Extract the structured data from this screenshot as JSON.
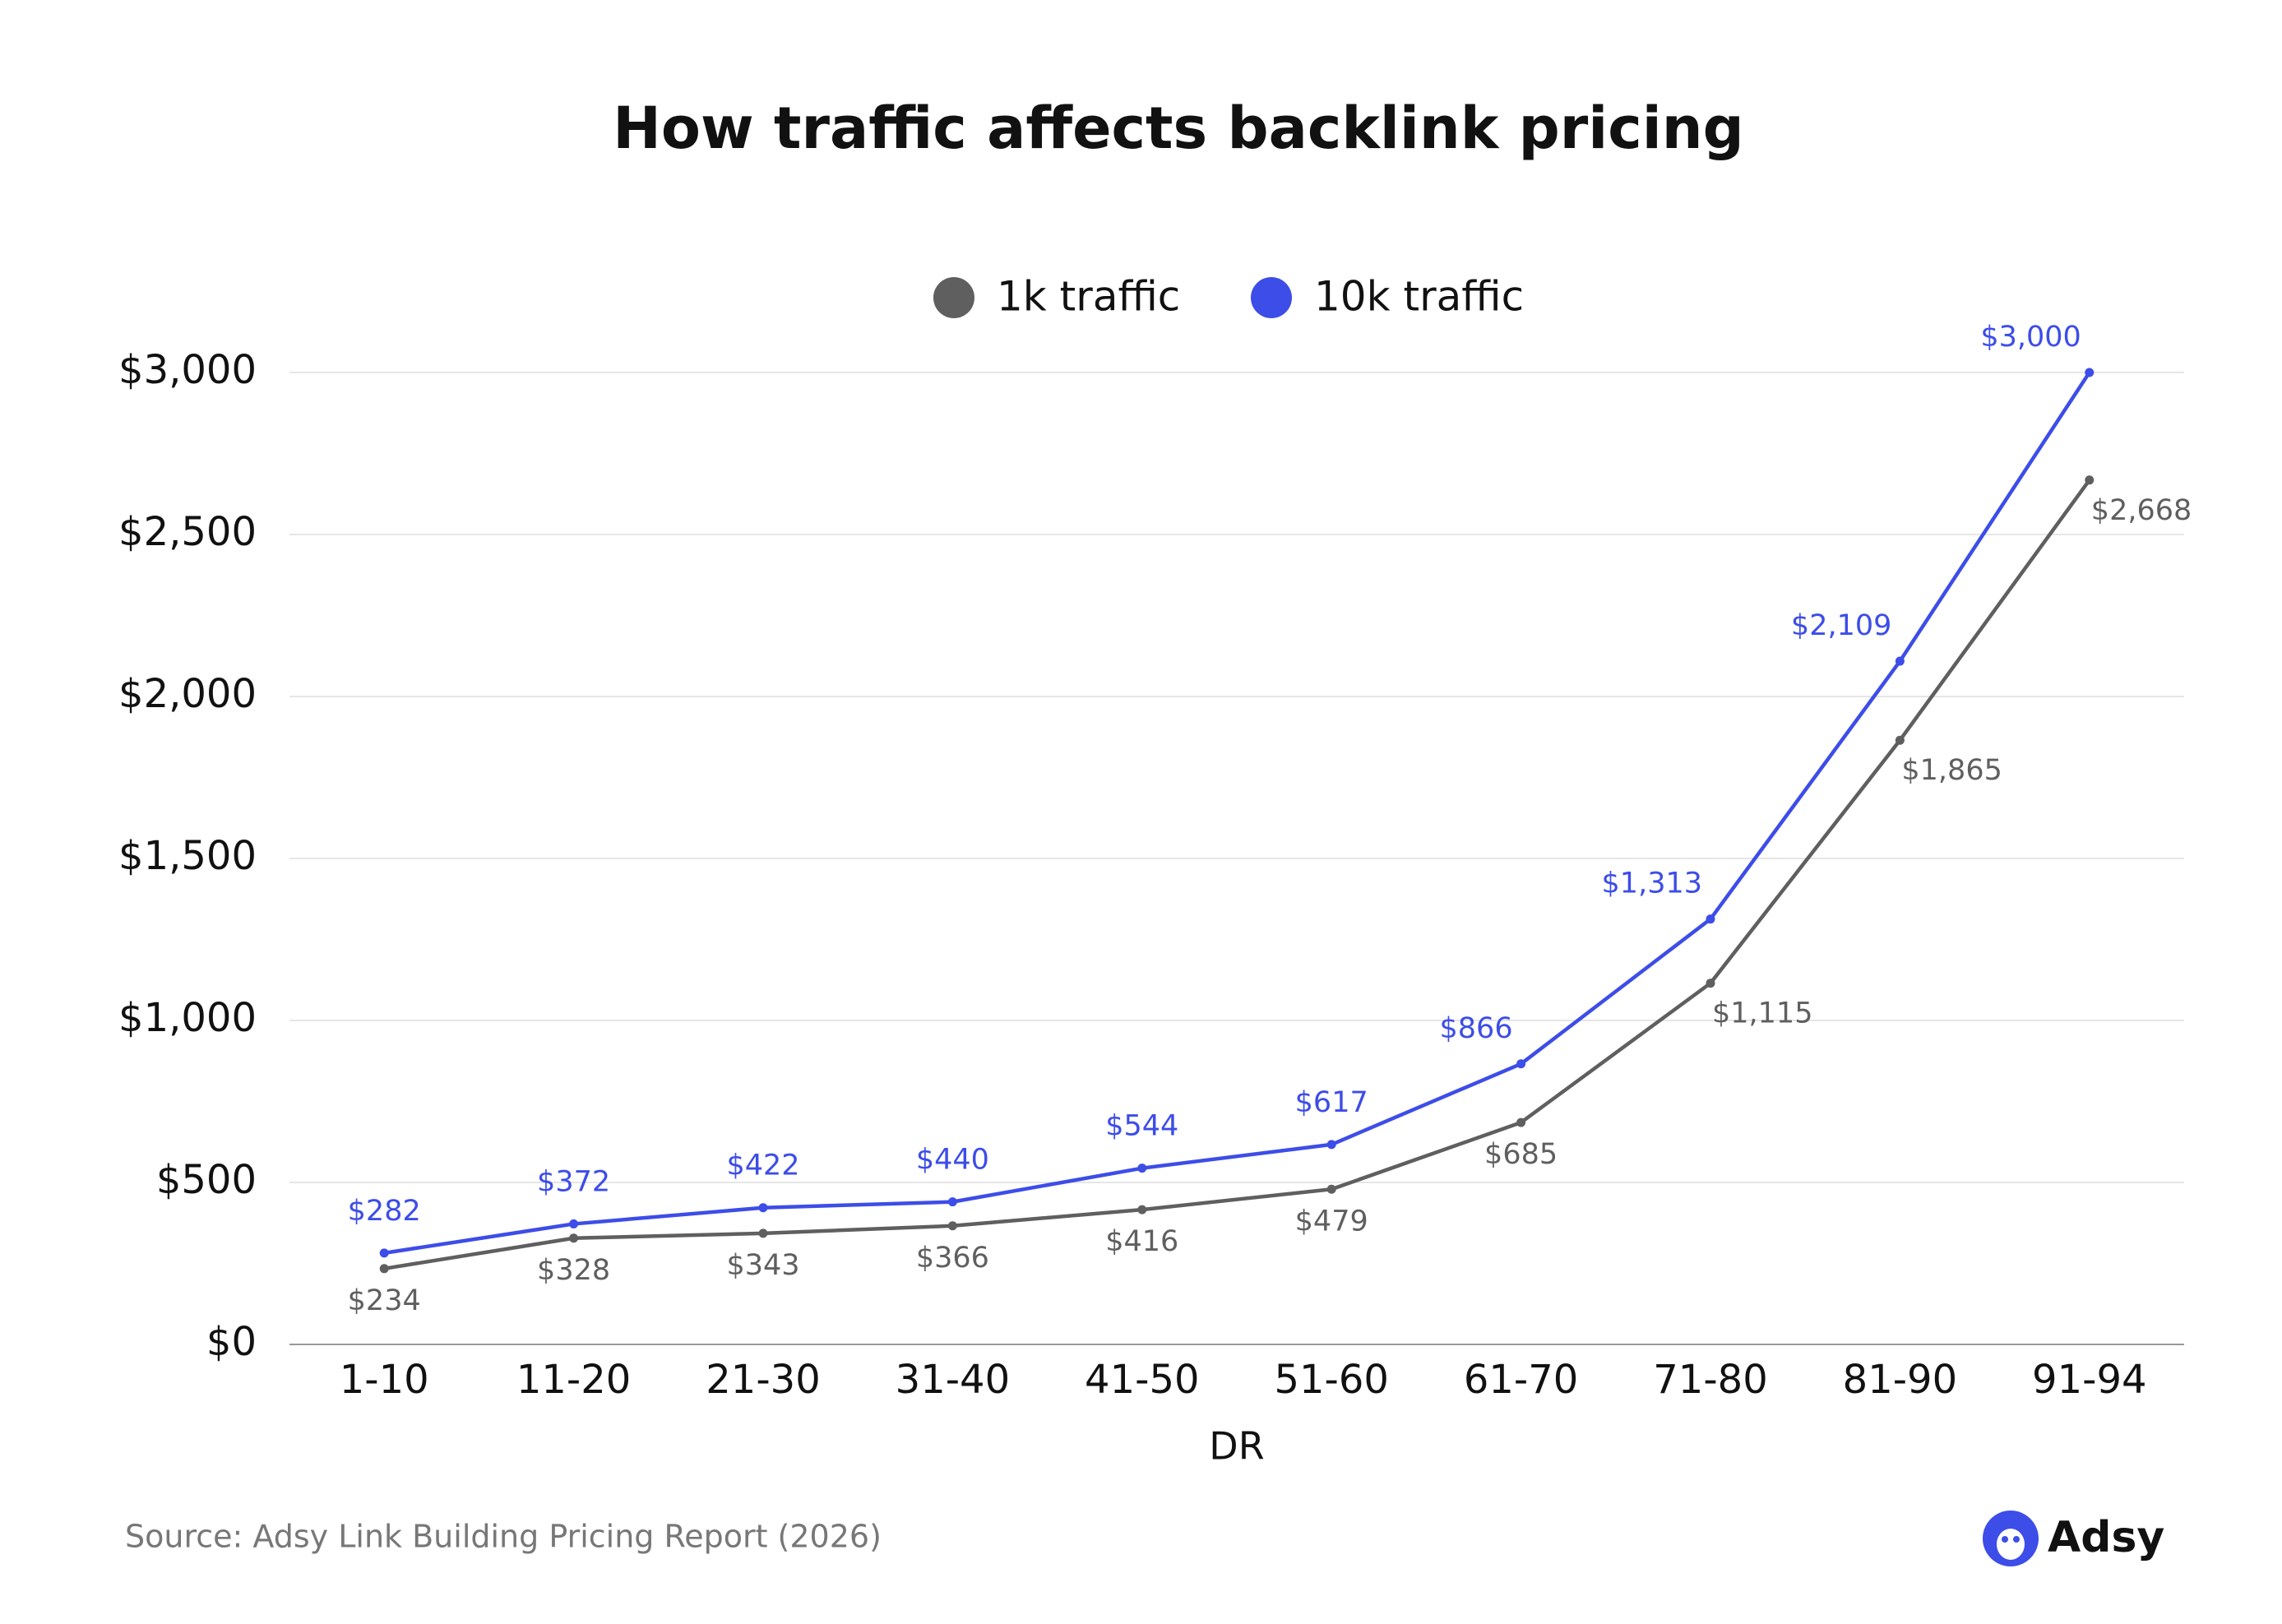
{
  "chart_data": {
    "type": "line",
    "title": "How traffic affects backlink pricing",
    "x_label": "DR",
    "categories": [
      "1-10",
      "11-20",
      "21-30",
      "31-40",
      "41-50",
      "51-60",
      "61-70",
      "71-80",
      "81-90",
      "91-94"
    ],
    "series": [
      {
        "name": "1k traffic",
        "color": "#5f5f5f",
        "values": [
          234,
          328,
          343,
          366,
          416,
          479,
          685,
          1115,
          1865,
          2668
        ],
        "value_labels": [
          "$234",
          "$328",
          "$343",
          "$366",
          "$416",
          "$479",
          "$685",
          "$1,115",
          "$1,865",
          "$2,668"
        ]
      },
      {
        "name": "10k traffic",
        "color": "#3d4de8",
        "values": [
          282,
          372,
          422,
          440,
          544,
          617,
          866,
          1313,
          2109,
          3000
        ],
        "value_labels": [
          "$282",
          "$372",
          "$422",
          "$440",
          "$544",
          "$617",
          "$866",
          "$1,313",
          "$2,109",
          "$3,000"
        ]
      }
    ],
    "ylim": [
      0,
      3000
    ],
    "yticks": [
      {
        "value": 0,
        "label": "$0"
      },
      {
        "value": 500,
        "label": "$500"
      },
      {
        "value": 1000,
        "label": "$1,000"
      },
      {
        "value": 1500,
        "label": "$1,500"
      },
      {
        "value": 2000,
        "label": "$2,000"
      },
      {
        "value": 2500,
        "label": "$2,500"
      },
      {
        "value": 3000,
        "label": "$3,000"
      }
    ],
    "grid": true,
    "legend_position": "top",
    "source": "Source: Adsy Link Building Pricing Report (2026)",
    "brand": "Adsy"
  }
}
